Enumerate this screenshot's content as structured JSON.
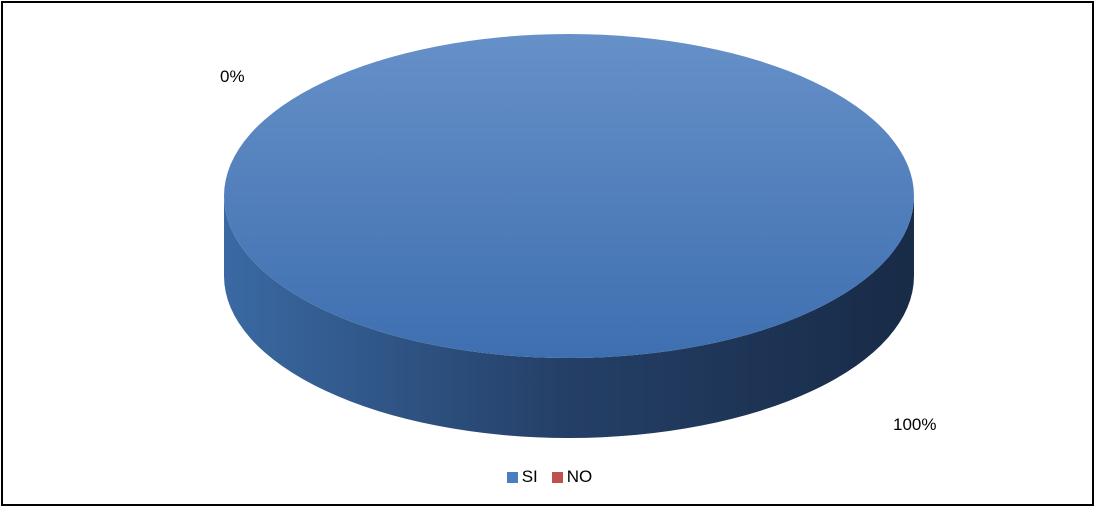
{
  "chart_data": {
    "type": "pie",
    "title": "",
    "categories": [
      "SI",
      "NO"
    ],
    "values": [
      100,
      0
    ],
    "data_labels": [
      "100%",
      "0%"
    ],
    "colors": [
      "#4a7ebf",
      "#c0504d"
    ],
    "style": "3d",
    "legend_placement": "bottom"
  }
}
